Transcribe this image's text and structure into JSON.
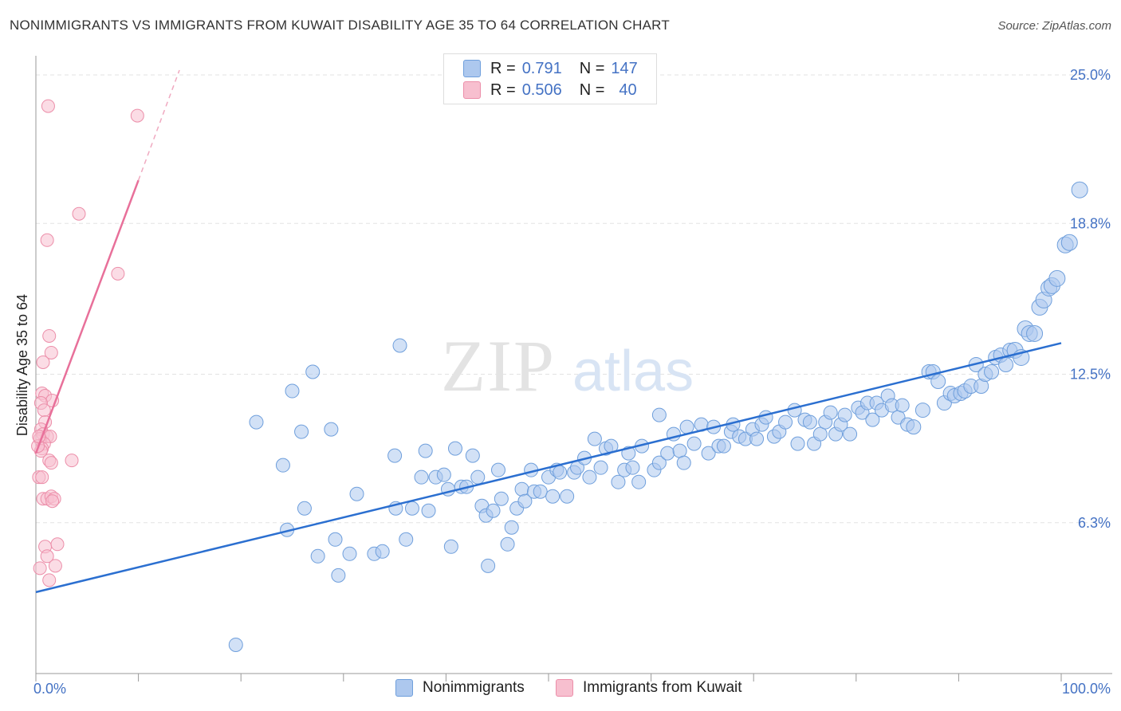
{
  "title": "NONIMMIGRANTS VS IMMIGRANTS FROM KUWAIT DISABILITY AGE 35 TO 64 CORRELATION CHART",
  "source": "Source: ZipAtlas.com",
  "watermark": {
    "zip": "ZIP",
    "atlas": "atlas"
  },
  "legend": {
    "r_label": "R =",
    "n_label": "N =",
    "rows": [
      {
        "r": "0.791",
        "n": "147"
      },
      {
        "r": "0.506",
        "n": "40"
      }
    ]
  },
  "colors": {
    "blue_fill": "#adc8ee",
    "blue_stroke": "#6f9fdc",
    "blue_line": "#2b6fd0",
    "pink_fill": "#f7bfcf",
    "pink_stroke": "#ec8ea9",
    "pink_line": "#e8709a",
    "axis_text": "#4472c4"
  },
  "chart_data": {
    "type": "scatter",
    "title": "NONIMMIGRANTS VS IMMIGRANTS FROM KUWAIT DISABILITY AGE 35 TO 64 CORRELATION CHART",
    "xlabel": "",
    "ylabel": "Disability Age 35 to 64",
    "xlim": [
      0,
      100
    ],
    "ylim": [
      0,
      25.8
    ],
    "x_tick_labels": [
      "0.0%",
      "100.0%"
    ],
    "y_ticks": [
      6.3,
      12.5,
      18.8,
      25.0
    ],
    "y_tick_labels": [
      "6.3%",
      "12.5%",
      "18.8%",
      "25.0%"
    ],
    "series": [
      {
        "name": "Nonimmigrants",
        "color": "#adc8ee",
        "trend": {
          "x": [
            0,
            100
          ],
          "y": [
            3.4,
            13.8
          ]
        },
        "points": [
          [
            19.5,
            1.2
          ],
          [
            21.5,
            10.5
          ],
          [
            24.1,
            8.7
          ],
          [
            24.5,
            6.0
          ],
          [
            25.0,
            11.8
          ],
          [
            25.9,
            10.1
          ],
          [
            26.2,
            6.9
          ],
          [
            27.0,
            12.6
          ],
          [
            27.5,
            4.9
          ],
          [
            28.8,
            10.2
          ],
          [
            29.2,
            5.6
          ],
          [
            29.5,
            4.1
          ],
          [
            30.6,
            5.0
          ],
          [
            31.3,
            7.5
          ],
          [
            33.0,
            5.0
          ],
          [
            33.8,
            5.1
          ],
          [
            35.0,
            9.1
          ],
          [
            35.1,
            6.9
          ],
          [
            35.5,
            13.7
          ],
          [
            36.1,
            5.6
          ],
          [
            36.7,
            6.9
          ],
          [
            37.6,
            8.2
          ],
          [
            38.0,
            9.3
          ],
          [
            38.3,
            6.8
          ],
          [
            39.0,
            8.2
          ],
          [
            39.8,
            8.3
          ],
          [
            40.2,
            7.7
          ],
          [
            40.5,
            5.3
          ],
          [
            40.9,
            9.4
          ],
          [
            41.5,
            7.8
          ],
          [
            42.0,
            7.8
          ],
          [
            42.6,
            9.1
          ],
          [
            43.1,
            8.2
          ],
          [
            43.5,
            7.0
          ],
          [
            43.9,
            6.6
          ],
          [
            44.1,
            4.5
          ],
          [
            44.6,
            6.8
          ],
          [
            45.1,
            8.5
          ],
          [
            45.4,
            7.3
          ],
          [
            46.0,
            5.4
          ],
          [
            46.4,
            6.1
          ],
          [
            46.9,
            6.9
          ],
          [
            47.4,
            7.7
          ],
          [
            47.7,
            7.2
          ],
          [
            48.3,
            8.5
          ],
          [
            48.6,
            7.6
          ],
          [
            49.2,
            7.6
          ],
          [
            50.0,
            8.2
          ],
          [
            50.4,
            7.4
          ],
          [
            50.8,
            8.5
          ],
          [
            51.1,
            8.4
          ],
          [
            51.8,
            7.4
          ],
          [
            52.5,
            8.4
          ],
          [
            52.8,
            8.6
          ],
          [
            53.5,
            9.0
          ],
          [
            54.0,
            8.2
          ],
          [
            54.5,
            9.8
          ],
          [
            55.1,
            8.6
          ],
          [
            55.6,
            9.4
          ],
          [
            56.1,
            9.5
          ],
          [
            56.8,
            8.0
          ],
          [
            57.4,
            8.5
          ],
          [
            57.8,
            9.2
          ],
          [
            58.2,
            8.6
          ],
          [
            58.8,
            8.0
          ],
          [
            59.1,
            9.5
          ],
          [
            60.3,
            8.5
          ],
          [
            60.8,
            8.8
          ],
          [
            60.8,
            10.8
          ],
          [
            61.6,
            9.2
          ],
          [
            62.2,
            10.0
          ],
          [
            62.8,
            9.3
          ],
          [
            63.2,
            8.8
          ],
          [
            63.5,
            10.3
          ],
          [
            64.2,
            9.6
          ],
          [
            64.9,
            10.4
          ],
          [
            65.6,
            9.2
          ],
          [
            66.1,
            10.3
          ],
          [
            66.6,
            9.5
          ],
          [
            67.1,
            9.5
          ],
          [
            67.8,
            10.1
          ],
          [
            68.0,
            10.4
          ],
          [
            68.6,
            9.9
          ],
          [
            69.2,
            9.8
          ],
          [
            69.9,
            10.2
          ],
          [
            70.3,
            9.8
          ],
          [
            70.8,
            10.4
          ],
          [
            71.2,
            10.7
          ],
          [
            72.0,
            9.9
          ],
          [
            72.5,
            10.1
          ],
          [
            73.1,
            10.5
          ],
          [
            74.0,
            11.0
          ],
          [
            74.3,
            9.6
          ],
          [
            75.0,
            10.6
          ],
          [
            75.5,
            10.5
          ],
          [
            75.9,
            9.6
          ],
          [
            76.5,
            10.0
          ],
          [
            77.0,
            10.5
          ],
          [
            77.5,
            10.9
          ],
          [
            78.0,
            10.0
          ],
          [
            78.5,
            10.4
          ],
          [
            78.9,
            10.8
          ],
          [
            79.4,
            10.0
          ],
          [
            80.2,
            11.1
          ],
          [
            80.6,
            10.9
          ],
          [
            81.1,
            11.3
          ],
          [
            81.6,
            10.6
          ],
          [
            82.0,
            11.3
          ],
          [
            82.5,
            11.0
          ],
          [
            83.1,
            11.6
          ],
          [
            83.5,
            11.2
          ],
          [
            84.1,
            10.7
          ],
          [
            84.5,
            11.2
          ],
          [
            85.0,
            10.4
          ],
          [
            85.6,
            10.3
          ],
          [
            86.5,
            11.0
          ],
          [
            87.1,
            12.6
          ],
          [
            87.5,
            12.6
          ],
          [
            88.0,
            12.2
          ],
          [
            88.6,
            11.3
          ],
          [
            89.2,
            11.7
          ],
          [
            89.6,
            11.6
          ],
          [
            90.2,
            11.7
          ],
          [
            90.6,
            11.8
          ],
          [
            91.2,
            12.0
          ],
          [
            91.7,
            12.9
          ],
          [
            92.2,
            12.0
          ],
          [
            92.6,
            12.5
          ],
          [
            93.2,
            12.6
          ],
          [
            93.6,
            13.2
          ],
          [
            94.1,
            13.3
          ],
          [
            94.6,
            12.9
          ],
          [
            95.0,
            13.5
          ],
          [
            95.5,
            13.5
          ],
          [
            96.1,
            13.2
          ],
          [
            96.5,
            14.4
          ],
          [
            96.9,
            14.2
          ],
          [
            97.4,
            14.2
          ],
          [
            97.9,
            15.3
          ],
          [
            98.3,
            15.6
          ],
          [
            98.8,
            16.1
          ],
          [
            99.1,
            16.2
          ],
          [
            99.6,
            16.5
          ],
          [
            100.4,
            17.9
          ],
          [
            100.8,
            18.0
          ],
          [
            101.8,
            20.2
          ]
        ]
      },
      {
        "name": "Immigrants from Kuwait",
        "color": "#f7bfcf",
        "trend": {
          "x": [
            0,
            10
          ],
          "y": [
            9.2,
            20.6
          ]
        },
        "trend_extension": {
          "x": [
            10,
            14
          ],
          "y": [
            20.6,
            25.2
          ]
        },
        "points": [
          [
            1.2,
            23.7
          ],
          [
            9.9,
            23.3
          ],
          [
            4.2,
            19.2
          ],
          [
            1.1,
            18.1
          ],
          [
            8.0,
            16.7
          ],
          [
            1.3,
            14.1
          ],
          [
            1.5,
            13.4
          ],
          [
            0.7,
            13.0
          ],
          [
            0.6,
            11.7
          ],
          [
            0.9,
            11.6
          ],
          [
            1.6,
            11.4
          ],
          [
            0.5,
            11.3
          ],
          [
            0.8,
            11.0
          ],
          [
            0.9,
            10.5
          ],
          [
            0.5,
            10.2
          ],
          [
            0.7,
            10.0
          ],
          [
            1.1,
            9.9
          ],
          [
            1.4,
            9.9
          ],
          [
            0.4,
            9.8
          ],
          [
            0.8,
            9.6
          ],
          [
            0.6,
            9.4
          ],
          [
            0.5,
            9.3
          ],
          [
            1.3,
            8.9
          ],
          [
            1.5,
            8.8
          ],
          [
            3.5,
            8.9
          ],
          [
            0.3,
            8.2
          ],
          [
            0.6,
            8.2
          ],
          [
            0.7,
            7.3
          ],
          [
            1.1,
            7.3
          ],
          [
            1.5,
            7.4
          ],
          [
            1.8,
            7.3
          ],
          [
            1.6,
            7.2
          ],
          [
            0.9,
            5.3
          ],
          [
            2.1,
            5.4
          ],
          [
            1.1,
            4.9
          ],
          [
            1.9,
            4.5
          ],
          [
            0.4,
            4.4
          ],
          [
            1.3,
            3.9
          ],
          [
            0.2,
            9.5
          ],
          [
            0.3,
            9.9
          ]
        ]
      }
    ]
  },
  "bottom_legend": [
    "Nonimmigrants",
    "Immigrants from Kuwait"
  ]
}
